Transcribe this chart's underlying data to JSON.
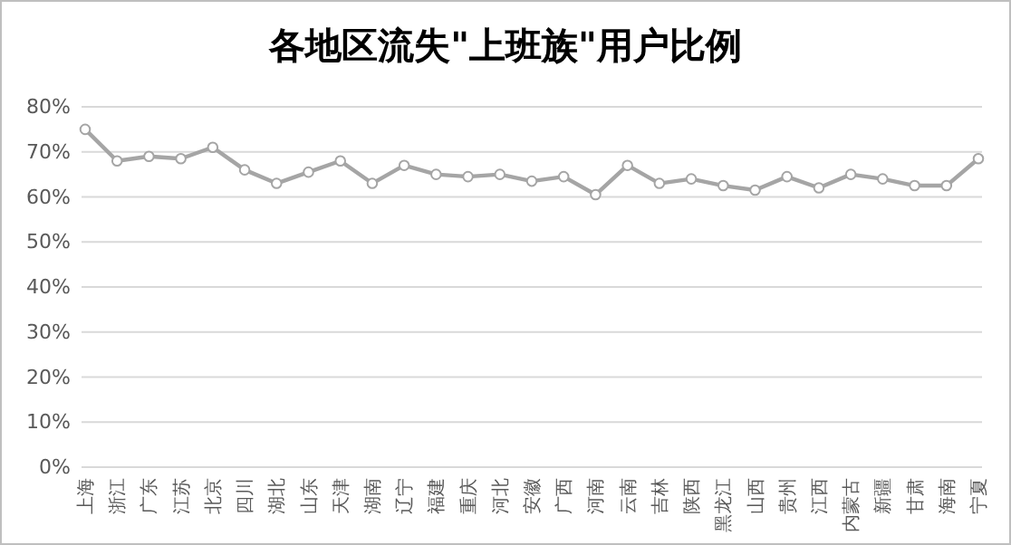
{
  "chart_data": {
    "type": "line",
    "title": "各地区流失\"上班族\"用户比例",
    "categories": [
      "上海",
      "浙江",
      "广东",
      "江苏",
      "北京",
      "四川",
      "湖北",
      "山东",
      "天津",
      "湖南",
      "辽宁",
      "福建",
      "重庆",
      "河北",
      "安徽",
      "广西",
      "河南",
      "云南",
      "吉林",
      "陕西",
      "黑龙江",
      "山西",
      "贵州",
      "江西",
      "内蒙古",
      "新疆",
      "甘肃",
      "海南",
      "宁夏"
    ],
    "series": [
      {
        "color": "#a5a5a5",
        "values": [
          75,
          68,
          69,
          68.5,
          71,
          66,
          63,
          65.5,
          68,
          63,
          67,
          65,
          64.5,
          65,
          63.5,
          64.5,
          60.5,
          67,
          63,
          64,
          62.5,
          61.5,
          64.5,
          62,
          65,
          64,
          62.5,
          62.5,
          68.5
        ]
      }
    ],
    "ylim": [
      0,
      80
    ],
    "yticks": [
      {
        "value": 0,
        "label": "0%"
      },
      {
        "value": 10,
        "label": "10%"
      },
      {
        "value": 20,
        "label": "20%"
      },
      {
        "value": 30,
        "label": "30%"
      },
      {
        "value": 40,
        "label": "40%"
      },
      {
        "value": 50,
        "label": "50%"
      },
      {
        "value": 60,
        "label": "60%"
      },
      {
        "value": 70,
        "label": "70%"
      },
      {
        "value": 80,
        "label": "80%"
      }
    ],
    "grid": "y",
    "marker": "circle",
    "line_style": "solid"
  }
}
